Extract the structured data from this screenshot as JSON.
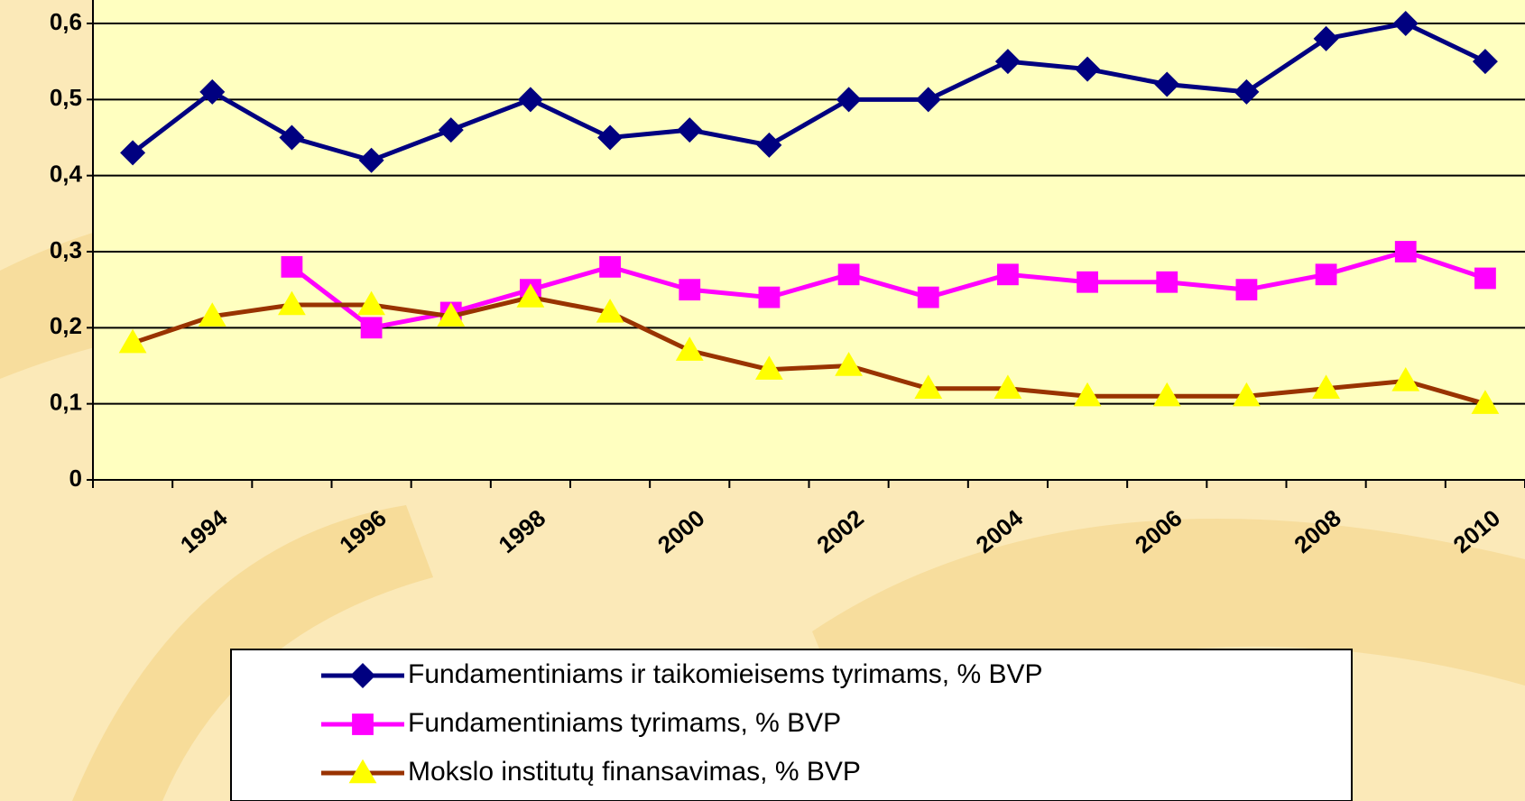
{
  "chart_data": {
    "type": "line",
    "categories": [
      null,
      "1994",
      null,
      "1996",
      null,
      "1998",
      null,
      "2000",
      null,
      "2002",
      null,
      "2004",
      null,
      "2006",
      null,
      "2008",
      null,
      "2010"
    ],
    "series": [
      {
        "name": "Fundamentiniams ir taikomieisems tyrimams, % BVP",
        "color": "#000080",
        "marker": "diamond",
        "marker_color": "#000080",
        "values": [
          0.43,
          0.51,
          0.45,
          0.42,
          0.46,
          0.5,
          0.45,
          0.46,
          0.44,
          0.5,
          0.5,
          0.55,
          0.54,
          0.52,
          0.51,
          0.58,
          0.6,
          0.55
        ]
      },
      {
        "name": "Fundamentiniams tyrimams, % BVP",
        "color": "#ff00ff",
        "marker": "square",
        "marker_color": "#ff00ff",
        "values": [
          null,
          null,
          0.28,
          0.2,
          0.22,
          0.25,
          0.28,
          0.25,
          0.24,
          0.27,
          0.24,
          0.27,
          0.26,
          0.26,
          0.25,
          0.27,
          0.3,
          0.265
        ]
      },
      {
        "name": "Mokslo institutų finansavimas, % BVP",
        "color": "#993300",
        "marker": "triangle",
        "marker_color": "#ffff00",
        "values": [
          0.18,
          0.215,
          0.23,
          0.23,
          0.215,
          0.24,
          0.22,
          0.17,
          0.145,
          0.15,
          0.12,
          0.12,
          0.11,
          0.11,
          0.11,
          0.12,
          0.13,
          0.1
        ]
      }
    ],
    "ylim": [
      0,
      0.6
    ],
    "yticks": [
      0,
      {
        "value": 0.1,
        "label": "0,1"
      },
      {
        "value": 0.2,
        "label": "0,2"
      },
      {
        "value": 0.3,
        "label": "0,3"
      },
      {
        "value": 0.4,
        "label": "0,4"
      },
      {
        "value": 0.5,
        "label": "0,5"
      },
      {
        "value": 0.6,
        "label": "0,6"
      }
    ],
    "grid": true,
    "legend": "bottom"
  }
}
